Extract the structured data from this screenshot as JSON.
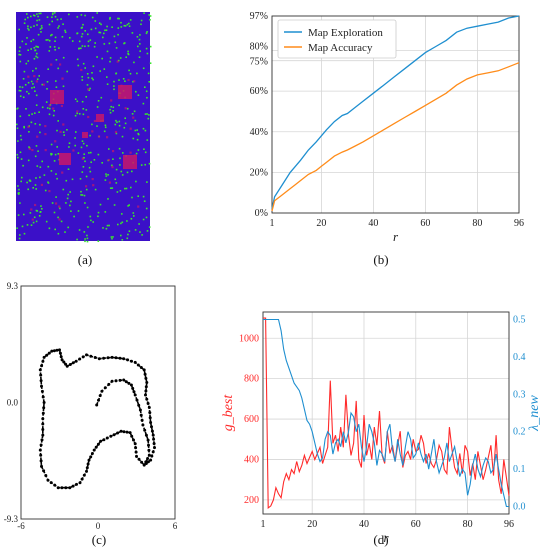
{
  "panels": {
    "a": {
      "label": "(a)"
    },
    "b": {
      "label": "(b)"
    },
    "c": {
      "label": "(c)"
    },
    "d": {
      "label": "(d)"
    }
  },
  "colors": {
    "blue": "#1f8fd0",
    "orange": "#ff8c1a",
    "red": "#ff2a2a",
    "map_bg": "#3b10c8",
    "map_green": "#39e62e",
    "map_magenta": "#c8186a",
    "path": "#000000"
  },
  "chart_data": [
    {
      "type": "heatmap",
      "panel": "a",
      "description_colors": [
        "blue",
        "green",
        "magenta"
      ]
    },
    {
      "type": "line",
      "panel": "b",
      "xlabel": "r",
      "ylabel": "",
      "xticks": [
        1,
        20,
        40,
        60,
        80,
        96
      ],
      "yticks": [
        "0%",
        "20%",
        "40%",
        "60%",
        "75%",
        "80%",
        "97%"
      ],
      "ytick_values": [
        0,
        20,
        40,
        60,
        75,
        80,
        97
      ],
      "xlim": [
        1,
        96
      ],
      "ylim": [
        0,
        97
      ],
      "legend_position": "top-left",
      "x": [
        1,
        2,
        5,
        8,
        10,
        12,
        15,
        18,
        20,
        22,
        25,
        28,
        30,
        33,
        36,
        40,
        44,
        48,
        52,
        56,
        60,
        64,
        68,
        72,
        76,
        80,
        84,
        88,
        92,
        96
      ],
      "series": [
        {
          "name": "Map Exploration",
          "color": "blue",
          "values": [
            2,
            8,
            14,
            20,
            23,
            26,
            31,
            35,
            38,
            41,
            45,
            48,
            49,
            52,
            55,
            59,
            63,
            67,
            71,
            75,
            79,
            82,
            85,
            89,
            91,
            92,
            93,
            94,
            96,
            97
          ]
        },
        {
          "name": "Map Accuracy",
          "color": "orange",
          "values": [
            1,
            6,
            9,
            12,
            14,
            16,
            19,
            21,
            23,
            25,
            28,
            30,
            31,
            33,
            35,
            38,
            41,
            44,
            47,
            50,
            53,
            56,
            59,
            63,
            66,
            68,
            69,
            70,
            72,
            74
          ]
        }
      ]
    },
    {
      "type": "scatter",
      "panel": "c",
      "xticks": [
        "-6",
        "0",
        "6"
      ],
      "yticks": [
        "9.3",
        "0.0",
        "-9.3"
      ],
      "xlim": [
        -6,
        6
      ],
      "ylim": [
        -9.3,
        9.3
      ],
      "path": [
        [
          -0.1,
          -0.2
        ],
        [
          0.3,
          0.9
        ],
        [
          1.1,
          1.7
        ],
        [
          2.0,
          1.8
        ],
        [
          2.6,
          1.4
        ],
        [
          2.9,
          0.6
        ],
        [
          3.3,
          -0.6
        ],
        [
          3.5,
          -1.8
        ],
        [
          3.9,
          -3.0
        ],
        [
          4.0,
          -4.2
        ],
        [
          3.6,
          -5.0
        ],
        [
          3.0,
          -4.3
        ],
        [
          2.9,
          -3.3
        ],
        [
          2.5,
          -2.4
        ],
        [
          1.8,
          -2.3
        ],
        [
          1.0,
          -2.7
        ],
        [
          0.2,
          -3.1
        ],
        [
          -0.3,
          -3.8
        ],
        [
          -0.7,
          -4.6
        ],
        [
          -0.9,
          -5.5
        ],
        [
          -1.4,
          -6.4
        ],
        [
          -2.2,
          -6.8
        ],
        [
          -3.1,
          -6.8
        ],
        [
          -3.9,
          -6.2
        ],
        [
          -4.4,
          -5.1
        ],
        [
          -4.5,
          -3.8
        ],
        [
          -4.3,
          -2.6
        ],
        [
          -4.3,
          -1.3
        ],
        [
          -4.2,
          0.0
        ],
        [
          -4.4,
          1.3
        ],
        [
          -4.5,
          2.6
        ],
        [
          -4.2,
          3.6
        ],
        [
          -3.6,
          4.1
        ],
        [
          -3.0,
          4.2
        ],
        [
          -2.8,
          3.4
        ],
        [
          -2.4,
          2.9
        ],
        [
          -1.7,
          3.3
        ],
        [
          -0.9,
          3.8
        ],
        [
          0.1,
          3.5
        ],
        [
          1.1,
          3.6
        ],
        [
          2.0,
          3.5
        ],
        [
          2.9,
          3.2
        ],
        [
          3.6,
          2.6
        ],
        [
          3.8,
          1.6
        ],
        [
          3.7,
          0.6
        ],
        [
          4.0,
          -0.4
        ],
        [
          4.1,
          -1.6
        ],
        [
          4.3,
          -2.6
        ],
        [
          4.4,
          -3.6
        ],
        [
          4.1,
          -4.6
        ],
        [
          3.6,
          -5.0
        ]
      ]
    },
    {
      "type": "line",
      "panel": "d",
      "xlabel": "r",
      "ylabel_left": "g_best",
      "ylabel_right": "λ_new",
      "xticks": [
        1,
        20,
        40,
        60,
        80,
        96
      ],
      "yticks_left": [
        200,
        400,
        600,
        800,
        1000
      ],
      "yticks_right": [
        "0.0",
        "0.1",
        "0.2",
        "0.3",
        "0.4",
        "0.5"
      ],
      "xlim": [
        1,
        96
      ],
      "ylim_left": [
        130,
        1130
      ],
      "ylim_right": [
        -0.02,
        0.52
      ],
      "x": [
        1,
        2,
        3,
        4,
        5,
        6,
        7,
        8,
        9,
        10,
        11,
        12,
        13,
        14,
        15,
        16,
        17,
        18,
        19,
        20,
        21,
        22,
        23,
        24,
        25,
        26,
        27,
        28,
        29,
        30,
        31,
        32,
        33,
        34,
        35,
        36,
        37,
        38,
        39,
        40,
        41,
        42,
        43,
        44,
        45,
        46,
        47,
        48,
        49,
        50,
        51,
        52,
        53,
        54,
        55,
        56,
        57,
        58,
        59,
        60,
        61,
        62,
        63,
        64,
        65,
        66,
        67,
        68,
        69,
        70,
        71,
        72,
        73,
        74,
        75,
        76,
        77,
        78,
        79,
        80,
        81,
        82,
        83,
        84,
        85,
        86,
        87,
        88,
        89,
        90,
        91,
        92,
        93,
        94,
        95,
        96
      ],
      "series": [
        {
          "name": "g_best",
          "axis": "left",
          "color": "red",
          "values": [
            1100,
            1100,
            160,
            170,
            200,
            260,
            230,
            210,
            290,
            330,
            300,
            350,
            330,
            390,
            340,
            370,
            420,
            380,
            410,
            440,
            400,
            430,
            460,
            380,
            420,
            460,
            790,
            480,
            520,
            440,
            560,
            460,
            720,
            520,
            420,
            480,
            690,
            400,
            360,
            620,
            420,
            480,
            400,
            560,
            470,
            640,
            420,
            380,
            540,
            430,
            470,
            390,
            470,
            540,
            360,
            420,
            440,
            400,
            500,
            440,
            450,
            520,
            480,
            380,
            430,
            380,
            360,
            400,
            470,
            440,
            350,
            330,
            560,
            450,
            360,
            330,
            430,
            330,
            470,
            440,
            320,
            380,
            300,
            440,
            370,
            300,
            350,
            410,
            470,
            320,
            520,
            300,
            230,
            400,
            310,
            220
          ]
        },
        {
          "name": "λ_new",
          "axis": "right",
          "color": "blue",
          "values": [
            0.5,
            0.5,
            0.5,
            0.5,
            0.5,
            0.5,
            0.5,
            0.47,
            0.42,
            0.39,
            0.37,
            0.35,
            0.33,
            0.32,
            0.31,
            0.29,
            0.26,
            0.23,
            0.22,
            0.2,
            0.17,
            0.14,
            0.12,
            0.13,
            0.18,
            0.2,
            0.19,
            0.14,
            0.17,
            0.18,
            0.16,
            0.2,
            0.17,
            0.2,
            0.25,
            0.24,
            0.2,
            0.22,
            0.16,
            0.12,
            0.16,
            0.22,
            0.2,
            0.17,
            0.11,
            0.15,
            0.14,
            0.12,
            0.2,
            0.22,
            0.15,
            0.12,
            0.18,
            0.14,
            0.11,
            0.16,
            0.2,
            0.18,
            0.13,
            0.14,
            0.17,
            0.14,
            0.12,
            0.14,
            0.1,
            0.14,
            0.18,
            0.12,
            0.09,
            0.11,
            0.13,
            0.17,
            0.12,
            0.14,
            0.16,
            0.12,
            0.08,
            0.1,
            0.09,
            0.03,
            0.06,
            0.11,
            0.14,
            0.1,
            0.08,
            0.11,
            0.13,
            0.12,
            0.09,
            0.1,
            0.14,
            0.1,
            0.06,
            0.03,
            0.0,
            0.0
          ]
        }
      ]
    }
  ]
}
